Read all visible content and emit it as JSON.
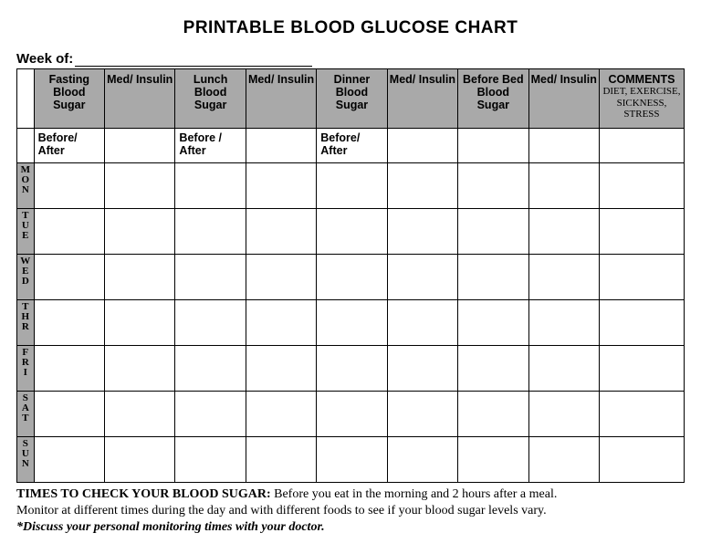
{
  "title": "PRINTABLE BLOOD GLUCOSE CHART",
  "week_label": "Week of:",
  "columns": {
    "c1": "Fasting Blood Sugar",
    "c2": "Med/ Insulin",
    "c3": "Lunch Blood Sugar",
    "c4": "Med/ Insulin",
    "c5": "Dinner Blood Sugar",
    "c6": "Med/ Insulin",
    "c7": "Before Bed Blood Sugar",
    "c8": "Med/ Insulin",
    "comments_main": "COMMENTS",
    "comments_sub": "DIET, EXERCISE, SICKNESS, STRESS"
  },
  "subheaders": {
    "s1": "Before/ After",
    "s3": "Before / After",
    "s5": "Before/ After"
  },
  "days": {
    "mon": [
      "M",
      "O",
      "N"
    ],
    "tue": [
      "T",
      "U",
      "E"
    ],
    "wed": [
      "W",
      "E",
      "D"
    ],
    "thr": [
      "T",
      "H",
      "R"
    ],
    "fri": [
      "F",
      "R",
      "I"
    ],
    "sat": [
      "S",
      "A",
      "T"
    ],
    "sun": [
      "S",
      "U",
      "N"
    ]
  },
  "footer": {
    "lead": "TIMES TO CHECK YOUR BLOOD SUGAR:",
    "line1": " Before you eat in the morning and 2 hours after a meal.",
    "line2": "Monitor at different times during the day and with different foods to see if your blood sugar levels vary.",
    "note": "*Discuss your personal monitoring times with your doctor."
  },
  "style": {
    "header_bg": "#a9a9a9",
    "border_color": "#000000",
    "page_bg": "#ffffff"
  }
}
